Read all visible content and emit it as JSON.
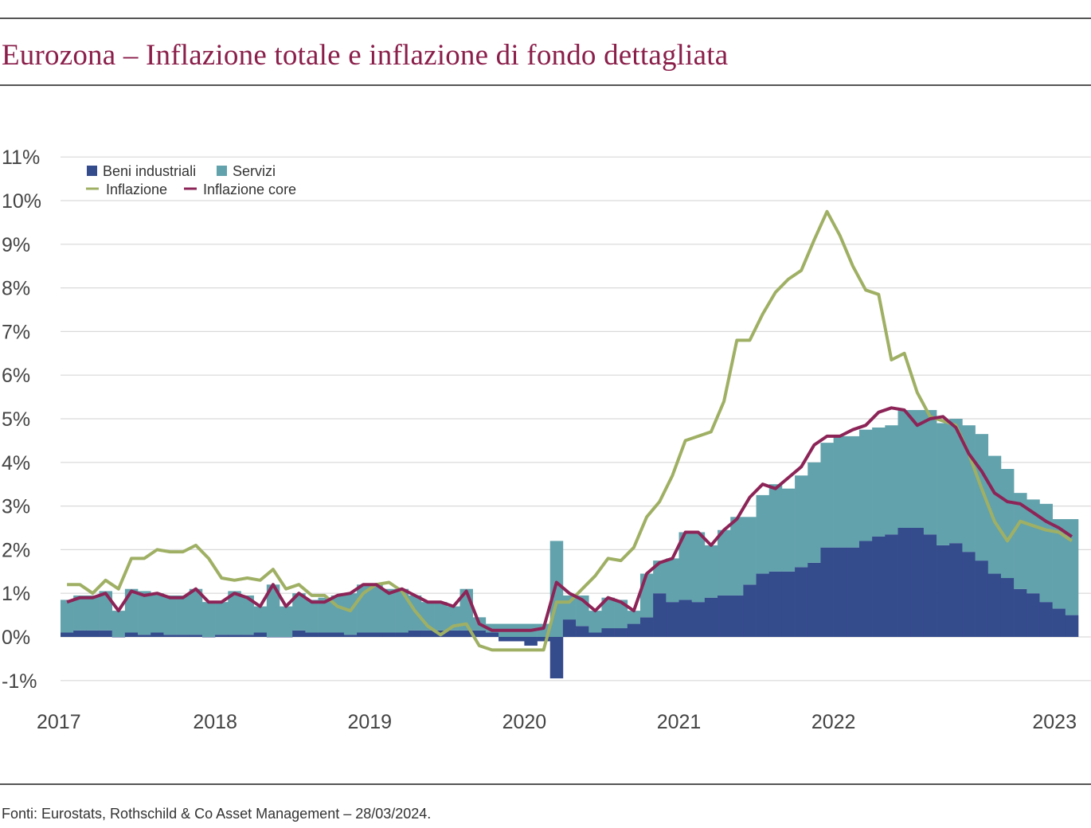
{
  "title": "Eurozona – Inflazione totale e inflazione di fondo dettagliata",
  "source": "Fonti: Eurostats, Rothschild & Co Asset Management – 28/03/2024.",
  "colors": {
    "title": "#8a1f4a",
    "beni": "#344b8c",
    "servizi": "#62a2ac",
    "inflazione": "#9fb064",
    "core": "#8c2457",
    "grid": "#d9d9d9"
  },
  "chart_data": {
    "type": "bar",
    "stacked": true,
    "x_start": "2017-01",
    "x_ticks": [
      "2017",
      "2018",
      "2019",
      "2020",
      "2021",
      "2022",
      "2023"
    ],
    "y_ticks": [
      "11%",
      "10%",
      "9%",
      "8%",
      "7%",
      "6%",
      "5%",
      "4%",
      "3%",
      "2%",
      "1%",
      "0%",
      "-1%"
    ],
    "ylim": [
      -1,
      11
    ],
    "grid": true,
    "legend_position": "top-left",
    "legend": {
      "beni": "Beni industriali",
      "servizi": "Servizi",
      "inflazione": "Inflazione",
      "core": "Inflazione core"
    },
    "beni_industriali": [
      0.1,
      0.15,
      0.15,
      0.15,
      0.0,
      0.1,
      0.05,
      0.1,
      0.05,
      0.05,
      0.05,
      0.0,
      0.05,
      0.05,
      0.05,
      0.1,
      0.0,
      0.0,
      0.15,
      0.1,
      0.1,
      0.1,
      0.05,
      0.1,
      0.1,
      0.1,
      0.1,
      0.15,
      0.15,
      0.15,
      0.15,
      0.15,
      0.15,
      0.1,
      -0.1,
      -0.1,
      -0.2,
      -0.1,
      -0.95,
      0.4,
      0.25,
      0.1,
      0.2,
      0.2,
      0.3,
      0.45,
      1.0,
      0.8,
      0.85,
      0.8,
      0.9,
      0.95,
      0.95,
      1.2,
      1.45,
      1.5,
      1.5,
      1.6,
      1.7,
      2.05,
      2.05,
      2.05,
      2.2,
      2.3,
      2.35,
      2.5,
      2.5,
      2.35,
      2.1,
      2.15,
      1.95,
      1.75,
      1.45,
      1.35,
      1.1,
      1.0,
      0.8,
      0.65,
      0.5
    ],
    "servizi": [
      0.75,
      0.8,
      0.8,
      0.9,
      0.6,
      1.0,
      1.0,
      0.9,
      0.9,
      0.9,
      1.05,
      0.8,
      0.75,
      1.0,
      0.9,
      0.6,
      1.2,
      0.7,
      0.85,
      0.75,
      0.8,
      0.85,
      0.95,
      1.1,
      1.1,
      1.0,
      1.0,
      0.8,
      0.65,
      0.65,
      0.55,
      0.95,
      0.3,
      0.2,
      0.3,
      0.3,
      0.3,
      0.3,
      2.2,
      0.55,
      0.7,
      0.5,
      0.7,
      0.65,
      0.3,
      1.0,
      0.75,
      1.0,
      1.55,
      1.6,
      1.2,
      1.5,
      1.8,
      1.55,
      1.8,
      2.0,
      1.9,
      2.1,
      2.3,
      2.4,
      2.55,
      2.55,
      2.55,
      2.5,
      2.5,
      2.7,
      2.7,
      2.85,
      2.8,
      2.85,
      2.9,
      2.9,
      2.7,
      2.5,
      2.2,
      2.15,
      2.25,
      2.05,
      2.2
    ],
    "inflazione": [
      1.2,
      1.2,
      1.0,
      1.3,
      1.1,
      1.8,
      1.8,
      2.0,
      1.95,
      1.95,
      2.1,
      1.8,
      1.35,
      1.3,
      1.35,
      1.3,
      1.55,
      1.1,
      1.2,
      0.95,
      0.95,
      0.7,
      0.6,
      1.0,
      1.2,
      1.25,
      1.05,
      0.6,
      0.25,
      0.05,
      0.25,
      0.3,
      -0.2,
      -0.3,
      -0.3,
      -0.3,
      -0.3,
      -0.3,
      0.8,
      0.8,
      1.1,
      1.4,
      1.8,
      1.75,
      2.05,
      2.75,
      3.1,
      3.7,
      4.5,
      4.6,
      4.7,
      5.4,
      6.8,
      6.8,
      7.4,
      7.9,
      8.2,
      8.4,
      9.1,
      9.75,
      9.2,
      8.5,
      7.95,
      7.85,
      6.35,
      6.5,
      5.6,
      5.05,
      4.95,
      4.85,
      4.2,
      3.4,
      2.65,
      2.2,
      2.65,
      2.55,
      2.45,
      2.4,
      2.2
    ],
    "inflazione_core": [
      0.8,
      0.9,
      0.9,
      1.0,
      0.6,
      1.05,
      0.95,
      1.0,
      0.9,
      0.9,
      1.1,
      0.8,
      0.8,
      1.0,
      0.9,
      0.7,
      1.2,
      0.7,
      1.0,
      0.8,
      0.8,
      0.95,
      1.0,
      1.2,
      1.2,
      1.0,
      1.1,
      0.95,
      0.8,
      0.8,
      0.7,
      1.05,
      0.3,
      0.15,
      0.15,
      0.15,
      0.15,
      0.2,
      1.25,
      1.0,
      0.85,
      0.6,
      0.9,
      0.8,
      0.6,
      1.45,
      1.7,
      1.8,
      2.4,
      2.4,
      2.1,
      2.45,
      2.7,
      3.2,
      3.5,
      3.4,
      3.65,
      3.9,
      4.4,
      4.6,
      4.6,
      4.75,
      4.85,
      5.15,
      5.25,
      5.2,
      4.85,
      5.0,
      5.05,
      4.8,
      4.2,
      3.8,
      3.3,
      3.1,
      3.05,
      2.85,
      2.65,
      2.5,
      2.3
    ]
  }
}
